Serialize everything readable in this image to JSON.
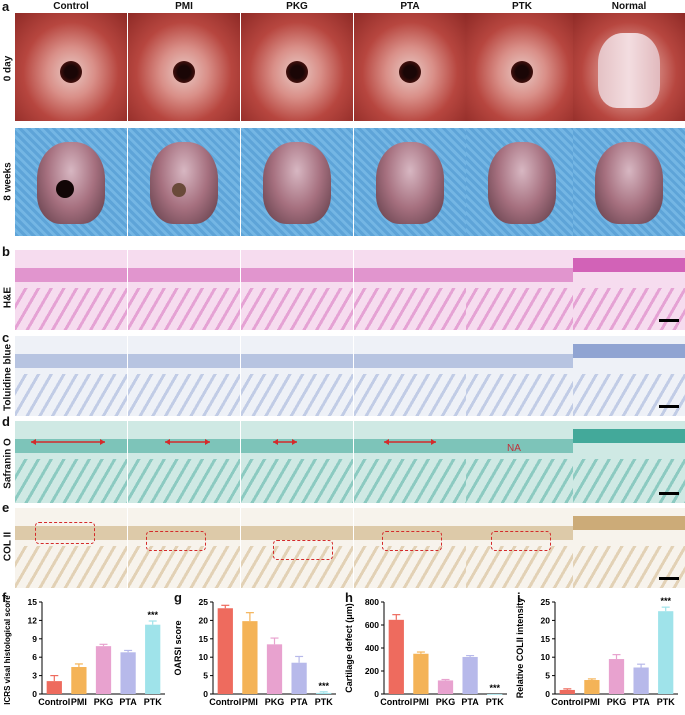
{
  "panel_letters": {
    "a": "a",
    "b": "b",
    "c": "c",
    "d": "d",
    "e": "e",
    "f": "f",
    "g": "g",
    "h": "h",
    "i": "i"
  },
  "groups": [
    "Control",
    "PMI",
    "PKG",
    "PTA",
    "PTK",
    "Normal"
  ],
  "row_labels": {
    "day0": "0 day",
    "week8": "8 weeks",
    "he": "H&E",
    "tb": "Toluidine blue",
    "so": "Safranin O",
    "col": "COL II"
  },
  "annotations": {
    "na": "NA"
  },
  "colors": {
    "tissue_red": "#b83a3a",
    "blue_pad": "#5fa8dc",
    "he_pink": "#e18acb",
    "tb_blue": "#cfd9ea",
    "so_green": "#8ec9c0",
    "col_beige": "#f1ebe0",
    "arrow": "#d42a2a",
    "box": "#d42a2a"
  },
  "chart_data": [
    {
      "type": "bar",
      "panel": "f",
      "ylabel": "ICRS visal histological score",
      "categories": [
        "Control",
        "PMI",
        "PKG",
        "PTA",
        "PTK"
      ],
      "values": [
        2.1,
        4.4,
        7.8,
        6.8,
        11.3
      ],
      "errors": [
        0.9,
        0.5,
        0.3,
        0.3,
        0.6
      ],
      "ylim": [
        0,
        15
      ],
      "yticks": [
        "0",
        "3",
        "6",
        "9",
        "12",
        "15"
      ],
      "colors": [
        "#ee6b5e",
        "#f4b357",
        "#e8a2cf",
        "#b7b9ea",
        "#9fe3ea"
      ],
      "significance": {
        "PTK": "***"
      }
    },
    {
      "type": "bar",
      "panel": "g",
      "ylabel": "OARSI score",
      "categories": [
        "Control",
        "PMI",
        "PKG",
        "PTA",
        "PTK"
      ],
      "values": [
        23.3,
        19.8,
        13.5,
        8.5,
        0.3
      ],
      "errors": [
        0.8,
        2.3,
        1.7,
        1.7,
        0.3
      ],
      "ylim": [
        0,
        25
      ],
      "yticks": [
        "0",
        "5",
        "10",
        "15",
        "20",
        "25"
      ],
      "colors": [
        "#ee6b5e",
        "#f4b357",
        "#e8a2cf",
        "#b7b9ea",
        "#9fe3ea"
      ],
      "significance": {
        "PTK": "***"
      }
    },
    {
      "type": "bar",
      "panel": "h",
      "ylabel": "Cartilage defect (μm)",
      "categories": [
        "Control",
        "PMI",
        "PKG",
        "PTA",
        "PTK"
      ],
      "values": [
        645,
        350,
        118,
        322,
        0
      ],
      "errors": [
        45,
        15,
        8,
        12,
        0
      ],
      "ylim": [
        0,
        800
      ],
      "yticks": [
        "0",
        "200",
        "400",
        "600",
        "800"
      ],
      "colors": [
        "#ee6b5e",
        "#f4b357",
        "#e8a2cf",
        "#b7b9ea",
        "#9fe3ea"
      ],
      "significance": {
        "PTK": "***"
      }
    },
    {
      "type": "bar",
      "panel": "i",
      "ylabel": "Relative COLII intensity",
      "categories": [
        "Control",
        "PMI",
        "PKG",
        "PTA",
        "PTK"
      ],
      "values": [
        1.1,
        3.8,
        9.5,
        7.2,
        22.5
      ],
      "errors": [
        0.3,
        0.3,
        1.2,
        0.9,
        1.1
      ],
      "ylim": [
        0,
        25
      ],
      "yticks": [
        "0",
        "5",
        "10",
        "15",
        "20",
        "25"
      ],
      "colors": [
        "#ee6b5e",
        "#f4b357",
        "#e8a2cf",
        "#b7b9ea",
        "#9fe3ea"
      ],
      "significance": {
        "PTK": "***"
      }
    }
  ]
}
